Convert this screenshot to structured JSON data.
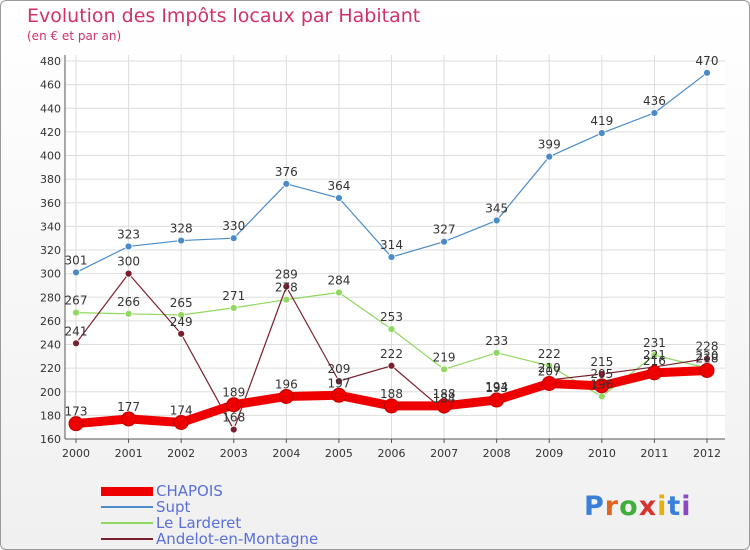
{
  "header": {
    "title": "Evolution des Impôts locaux par Habitant",
    "subtitle": "(en € et par an)"
  },
  "logo": {
    "text": "Proxiti",
    "letter_colors": [
      "#3a7fd8",
      "#e0651e",
      "#3fae3a",
      "#d6342f",
      "#e3b20f",
      "#3a7fd8",
      "#8a49c2"
    ]
  },
  "chart_data": {
    "type": "line",
    "title": "Evolution des Impôts locaux par Habitant",
    "subtitle": "(en € et par an)",
    "xlabel": "",
    "ylabel": "",
    "categories": [
      "2000",
      "2001",
      "2002",
      "2003",
      "2004",
      "2005",
      "2006",
      "2007",
      "2008",
      "2009",
      "2010",
      "2011",
      "2012"
    ],
    "ylim": [
      160,
      480
    ],
    "yticks": [
      160,
      180,
      200,
      220,
      240,
      260,
      280,
      300,
      320,
      340,
      360,
      380,
      400,
      420,
      440,
      460,
      480
    ],
    "grid": true,
    "legend_position": "bottom-left",
    "series": [
      {
        "name": "CHAPOIS",
        "color": "#ee0000",
        "line_width": 9,
        "marker_radius": 7,
        "values": [
          173,
          177,
          174,
          189,
          196,
          197,
          188,
          188,
          193,
          207,
          205,
          216,
          218
        ],
        "labels": [
          "173",
          "177",
          "174",
          "189",
          "196",
          "197",
          "188",
          "188",
          "193",
          "207",
          "205",
          "216",
          "218"
        ]
      },
      {
        "name": "Supt",
        "color": "#4a8cc9",
        "line_width": 1.2,
        "marker_radius": 3.5,
        "values": [
          301,
          323,
          328,
          330,
          376,
          364,
          314,
          327,
          345,
          399,
          419,
          436,
          470
        ],
        "labels": [
          "301",
          "323",
          "328",
          "330",
          "376",
          "364",
          "314",
          "327",
          "345",
          "399",
          "419",
          "436",
          "470"
        ]
      },
      {
        "name": "Le Larderet",
        "color": "#90d860",
        "line_width": 1.2,
        "marker_radius": 3.5,
        "values": [
          267,
          266,
          265,
          271,
          278,
          284,
          253,
          219,
          233,
          222,
          196,
          231,
          220
        ],
        "labels": [
          "267",
          "266",
          "265",
          "271",
          "278",
          "284",
          "253",
          "219",
          "233",
          "222",
          "196",
          "231",
          "220"
        ]
      },
      {
        "name": "Andelot-en-Montagne",
        "color": "#7a1f2e",
        "line_width": 1.2,
        "marker_radius": 3.5,
        "values": [
          241,
          300,
          249,
          168,
          289,
          209,
          222,
          184,
          194,
          210,
          215,
          221,
          228
        ],
        "labels": [
          "241",
          "300",
          "249",
          "168",
          "289",
          "209",
          "222",
          "184",
          "194",
          "210",
          "215",
          "221",
          "228"
        ]
      }
    ]
  }
}
